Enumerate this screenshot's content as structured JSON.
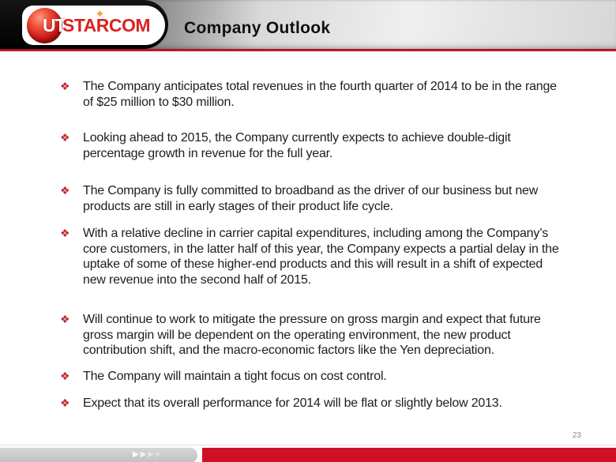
{
  "header": {
    "title": "Company Outlook"
  },
  "logo": {
    "ball_text": "UT",
    "wordmark_rest": "STARCOM",
    "star_glyph": "✦"
  },
  "bullets_meta": {
    "glyph": "❖"
  },
  "bullets": [
    "The Company anticipates total revenues in the fourth quarter of 2014 to be in the range of $25 million to $30 million.",
    "Looking ahead to 2015, the Company currently expects to achieve double-digit percentage growth in revenue for the full year.",
    "The Company is fully committed to broadband as the driver of our business but new products are still in early stages of their product life cycle.",
    "With a relative decline in carrier capital expenditures, including among the Company’s core customers, in the latter half of this year, the Company expects a partial delay in the uptake of some of these higher-end products and this will result in a shift of expected new revenue into the second half of 2015.",
    "Will continue to work to mitigate the pressure on gross margin and expect that future gross margin will be dependent on the operating environment, the new product contribution shift, and the macro-economic factors like the Yen depreciation.",
    "The Company will maintain a tight focus on cost control.",
    "Expect that its overall performance for 2014 will be flat or slightly below 2013."
  ],
  "footer": {
    "page_number": "23",
    "arrow_glyph": "▶"
  },
  "colors": {
    "accent_red": "#cf1126",
    "bullet_red": "#c1272d",
    "logo_red": "#d8231f",
    "star_gold": "#f5a31d",
    "header_black": "#000000",
    "body_text": "#1d1d1d"
  }
}
